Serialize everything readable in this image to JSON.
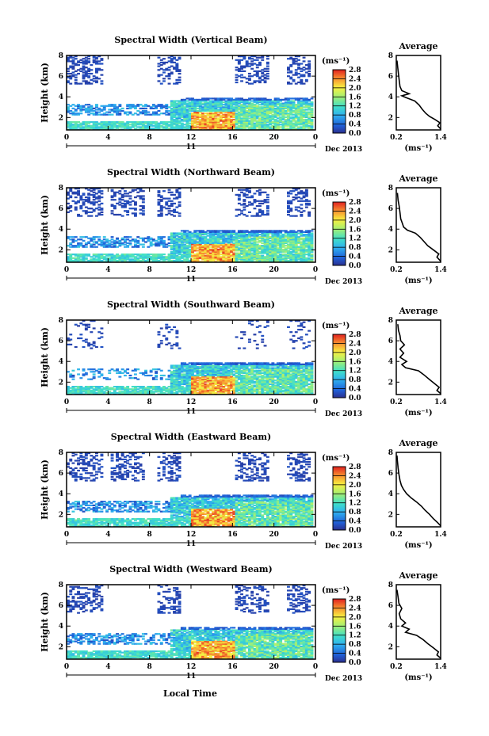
{
  "figure": {
    "x_axis_title": "Local Time",
    "date_label": "Dec 2013",
    "day_label": "11",
    "colorbar_unit": "(ms⁻¹)",
    "avg_unit": "(ms⁻¹)"
  },
  "chart_data": [
    {
      "type": "heatmap",
      "title": "Spectral Width (Vertical Beam)",
      "xlabel": "Local Time",
      "ylabel": "Height (km)",
      "x_ticks": [
        "0",
        "4",
        "8",
        "12",
        "16",
        "20",
        "0"
      ],
      "y_ticks": [
        "2",
        "4",
        "6",
        "8"
      ],
      "xlim": [
        0,
        24
      ],
      "ylim": [
        0.8,
        8
      ],
      "colorbar": {
        "ticks": [
          "0.0",
          "0.4",
          "0.8",
          "1.2",
          "1.6",
          "2.0",
          "2.4",
          "2.8"
        ],
        "range": [
          0,
          2.8
        ]
      },
      "average_profile": {
        "title": "Average",
        "x_ticks": [
          "0.2",
          "1.4"
        ],
        "y_ticks": [
          "2",
          "4",
          "6",
          "8"
        ],
        "xlim": [
          0.2,
          1.4
        ],
        "ylim": [
          0.8,
          8
        ],
        "points": [
          [
            1.4,
            0.9
          ],
          [
            1.32,
            1.2
          ],
          [
            1.38,
            1.5
          ],
          [
            1.25,
            1.8
          ],
          [
            1.1,
            2.1
          ],
          [
            1.0,
            2.4
          ],
          [
            0.9,
            2.8
          ],
          [
            0.82,
            3.2
          ],
          [
            0.7,
            3.6
          ],
          [
            0.48,
            3.9
          ],
          [
            0.35,
            4.1
          ],
          [
            0.55,
            4.3
          ],
          [
            0.35,
            4.6
          ],
          [
            0.3,
            5.0
          ],
          [
            0.28,
            5.6
          ],
          [
            0.26,
            6.2
          ],
          [
            0.24,
            6.8
          ],
          [
            0.22,
            7.5
          ]
        ]
      }
    },
    {
      "type": "heatmap",
      "title": "Spectral Width (Northward Beam)",
      "xlabel": "Local Time",
      "ylabel": "Height (km)",
      "x_ticks": [
        "0",
        "4",
        "8",
        "12",
        "16",
        "20",
        "0"
      ],
      "y_ticks": [
        "2",
        "4",
        "6",
        "8"
      ],
      "xlim": [
        0,
        24
      ],
      "ylim": [
        0.8,
        8
      ],
      "colorbar": {
        "ticks": [
          "0.0",
          "0.4",
          "0.8",
          "1.2",
          "1.6",
          "2.0",
          "2.4",
          "2.8"
        ],
        "range": [
          0,
          2.8
        ]
      },
      "average_profile": {
        "title": "Average",
        "x_ticks": [
          "0.2",
          "1.4"
        ],
        "y_ticks": [
          "2",
          "4",
          "6",
          "8"
        ],
        "xlim": [
          0.2,
          1.4
        ],
        "ylim": [
          0.8,
          8
        ],
        "points": [
          [
            1.4,
            0.9
          ],
          [
            1.3,
            1.3
          ],
          [
            1.35,
            1.6
          ],
          [
            1.2,
            2.0
          ],
          [
            1.05,
            2.4
          ],
          [
            0.95,
            2.8
          ],
          [
            0.85,
            3.2
          ],
          [
            0.72,
            3.6
          ],
          [
            0.5,
            3.9
          ],
          [
            0.4,
            4.2
          ],
          [
            0.36,
            4.6
          ],
          [
            0.32,
            5.0
          ],
          [
            0.3,
            5.6
          ],
          [
            0.28,
            6.2
          ],
          [
            0.25,
            6.8
          ],
          [
            0.23,
            7.5
          ]
        ]
      }
    },
    {
      "type": "heatmap",
      "title": "Spectral Width (Southward Beam)",
      "xlabel": "Local Time",
      "ylabel": "Height (km)",
      "x_ticks": [
        "0",
        "4",
        "8",
        "12",
        "16",
        "20",
        "0"
      ],
      "y_ticks": [
        "2",
        "4",
        "6",
        "8"
      ],
      "xlim": [
        0,
        24
      ],
      "ylim": [
        0.8,
        8
      ],
      "colorbar": {
        "ticks": [
          "0.0",
          "0.4",
          "0.8",
          "1.2",
          "1.6",
          "2.0",
          "2.4",
          "2.8"
        ],
        "range": [
          0,
          2.8
        ]
      },
      "average_profile": {
        "title": "Average",
        "x_ticks": [
          "0.2",
          "1.4"
        ],
        "y_ticks": [
          "2",
          "4",
          "6",
          "8"
        ],
        "xlim": [
          0.2,
          1.4
        ],
        "ylim": [
          0.8,
          8
        ],
        "points": [
          [
            1.4,
            0.9
          ],
          [
            1.3,
            1.2
          ],
          [
            1.36,
            1.5
          ],
          [
            1.22,
            1.9
          ],
          [
            1.08,
            2.3
          ],
          [
            0.95,
            2.7
          ],
          [
            0.8,
            3.1
          ],
          [
            0.45,
            3.4
          ],
          [
            0.35,
            3.7
          ],
          [
            0.48,
            4.0
          ],
          [
            0.3,
            4.4
          ],
          [
            0.4,
            4.8
          ],
          [
            0.3,
            5.2
          ],
          [
            0.42,
            5.6
          ],
          [
            0.32,
            6.0
          ],
          [
            0.3,
            6.5
          ],
          [
            0.26,
            7.0
          ],
          [
            0.24,
            7.6
          ]
        ]
      }
    },
    {
      "type": "heatmap",
      "title": "Spectral Width (Eastward Beam)",
      "xlabel": "Local Time",
      "ylabel": "Height (km)",
      "x_ticks": [
        "0",
        "4",
        "8",
        "12",
        "16",
        "20",
        "0"
      ],
      "y_ticks": [
        "2",
        "4",
        "6",
        "8"
      ],
      "xlim": [
        0,
        24
      ],
      "ylim": [
        0.8,
        8
      ],
      "colorbar": {
        "ticks": [
          "0.0",
          "0.4",
          "0.8",
          "1.2",
          "1.6",
          "2.0",
          "2.4",
          "2.8"
        ],
        "range": [
          0,
          2.8
        ]
      },
      "average_profile": {
        "title": "Average",
        "x_ticks": [
          "0.2",
          "1.4"
        ],
        "y_ticks": [
          "2",
          "4",
          "6",
          "8"
        ],
        "xlim": [
          0.2,
          1.4
        ],
        "ylim": [
          0.8,
          8
        ],
        "points": [
          [
            1.4,
            0.9
          ],
          [
            1.32,
            1.2
          ],
          [
            1.2,
            1.6
          ],
          [
            1.1,
            2.0
          ],
          [
            0.98,
            2.4
          ],
          [
            0.88,
            2.8
          ],
          [
            0.75,
            3.2
          ],
          [
            0.6,
            3.6
          ],
          [
            0.48,
            4.0
          ],
          [
            0.4,
            4.4
          ],
          [
            0.34,
            4.8
          ],
          [
            0.3,
            5.3
          ],
          [
            0.27,
            5.9
          ],
          [
            0.25,
            6.5
          ],
          [
            0.23,
            7.2
          ],
          [
            0.22,
            7.7
          ]
        ]
      }
    },
    {
      "type": "heatmap",
      "title": "Spectral Width (Westward Beam)",
      "xlabel": "Local Time",
      "ylabel": "Height (km)",
      "x_ticks": [
        "0",
        "4",
        "8",
        "12",
        "16",
        "20",
        "0"
      ],
      "y_ticks": [
        "2",
        "4",
        "6",
        "8"
      ],
      "xlim": [
        0,
        24
      ],
      "ylim": [
        0.8,
        8
      ],
      "colorbar": {
        "ticks": [
          "0.0",
          "0.4",
          "0.8",
          "1.2",
          "1.6",
          "2.0",
          "2.4",
          "2.8"
        ],
        "range": [
          0,
          2.8
        ]
      },
      "average_profile": {
        "title": "Average",
        "x_ticks": [
          "0.2",
          "1.4"
        ],
        "y_ticks": [
          "2",
          "4",
          "6",
          "8"
        ],
        "xlim": [
          0.2,
          1.4
        ],
        "ylim": [
          0.8,
          8
        ],
        "points": [
          [
            1.4,
            0.9
          ],
          [
            1.3,
            1.2
          ],
          [
            1.34,
            1.5
          ],
          [
            1.2,
            1.9
          ],
          [
            1.05,
            2.3
          ],
          [
            0.92,
            2.7
          ],
          [
            0.75,
            3.1
          ],
          [
            0.45,
            3.4
          ],
          [
            0.55,
            3.7
          ],
          [
            0.35,
            4.0
          ],
          [
            0.45,
            4.3
          ],
          [
            0.32,
            4.7
          ],
          [
            0.28,
            5.2
          ],
          [
            0.35,
            5.7
          ],
          [
            0.27,
            6.2
          ],
          [
            0.25,
            6.8
          ],
          [
            0.22,
            7.5
          ]
        ]
      }
    }
  ]
}
